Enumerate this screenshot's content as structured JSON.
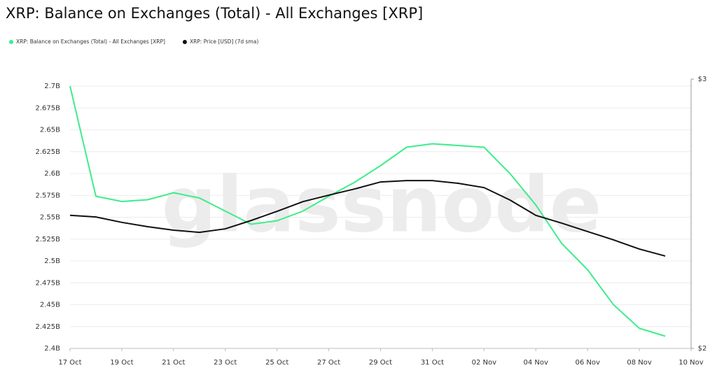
{
  "chart_data": {
    "type": "line",
    "title": "XRP: Balance on Exchanges (Total) - All Exchanges [XRP]",
    "watermark": "glassnode",
    "x": [
      0,
      1,
      2,
      3,
      4,
      5,
      6,
      7,
      8,
      9,
      10,
      11,
      12,
      13,
      14,
      15,
      16,
      17,
      18,
      19,
      20,
      21,
      22,
      23
    ],
    "xlim": [
      0,
      24
    ],
    "xticks": [
      {
        "value": 0,
        "label": "17 Oct"
      },
      {
        "value": 2,
        "label": "19 Oct"
      },
      {
        "value": 4,
        "label": "21 Oct"
      },
      {
        "value": 6,
        "label": "23 Oct"
      },
      {
        "value": 8,
        "label": "25 Oct"
      },
      {
        "value": 10,
        "label": "27 Oct"
      },
      {
        "value": 12,
        "label": "29 Oct"
      },
      {
        "value": 14,
        "label": "31 Oct"
      },
      {
        "value": 16,
        "label": "02 Nov"
      },
      {
        "value": 18,
        "label": "04 Nov"
      },
      {
        "value": 20,
        "label": "06 Nov"
      },
      {
        "value": 22,
        "label": "08 Nov"
      },
      {
        "value": 24,
        "label": "10 Nov"
      }
    ],
    "ylim": [
      2.4,
      2.708
    ],
    "yticks": [
      {
        "value": 2.4,
        "label": "2.4B"
      },
      {
        "value": 2.425,
        "label": "2.425B"
      },
      {
        "value": 2.45,
        "label": "2.45B"
      },
      {
        "value": 2.475,
        "label": "2.475B"
      },
      {
        "value": 2.5,
        "label": "2.5B"
      },
      {
        "value": 2.525,
        "label": "2.525B"
      },
      {
        "value": 2.55,
        "label": "2.55B"
      },
      {
        "value": 2.575,
        "label": "2.575B"
      },
      {
        "value": 2.6,
        "label": "2.6B"
      },
      {
        "value": 2.625,
        "label": "2.625B"
      },
      {
        "value": 2.65,
        "label": "2.65B"
      },
      {
        "value": 2.675,
        "label": "2.675B"
      },
      {
        "value": 2.7,
        "label": "2.7B"
      }
    ],
    "y2lim": [
      2,
      3
    ],
    "y2ticks": [
      {
        "value": 2,
        "label": "$2"
      },
      {
        "value": 3,
        "label": "$3"
      }
    ],
    "grid": true,
    "series": [
      {
        "name": "XRP: Balance on Exchanges (Total) - All Exchanges [XRP]",
        "color": "#3ded8a",
        "values": [
          2.7,
          2.574,
          2.568,
          2.57,
          2.578,
          2.572,
          2.557,
          2.542,
          2.546,
          2.557,
          2.574,
          2.59,
          2.609,
          2.63,
          2.634,
          2.632,
          2.63,
          2.6,
          2.564,
          2.52,
          2.49,
          2.45,
          2.423,
          2.414
        ]
      },
      {
        "name": "XRP: Price [USD] (7d sma)",
        "color": "#111111",
        "axis": "y2",
        "values": [
          2.494,
          2.488,
          2.468,
          2.452,
          2.439,
          2.431,
          2.444,
          2.475,
          2.509,
          2.545,
          2.569,
          2.592,
          2.618,
          2.623,
          2.623,
          2.613,
          2.597,
          2.551,
          2.494,
          2.465,
          2.434,
          2.403,
          2.369,
          2.343
        ]
      }
    ]
  }
}
